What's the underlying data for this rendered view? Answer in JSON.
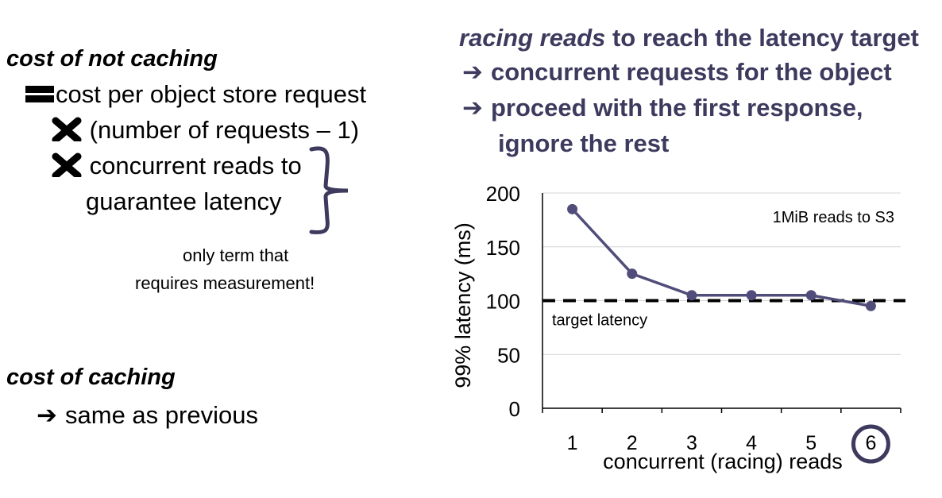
{
  "left": {
    "heading1": "cost of not caching",
    "eq_symbol": "equals-icon",
    "line1": "cost per object store request",
    "times_symbol": "times-icon",
    "line2": "(number of requests  –  1)",
    "line3a": "concurrent reads to",
    "line3b": "guarantee latency",
    "note1": "only term that",
    "note2": "requires measurement!",
    "heading2": "cost of caching",
    "line4": "same as previous"
  },
  "right": {
    "title_em": "racing reads",
    "title_rest": " to reach the latency target",
    "bullet1": "concurrent requests for the object",
    "bullet2a": "proceed with the first response,",
    "bullet2b": "ignore the rest"
  },
  "chart_data": {
    "type": "line",
    "x": [
      1,
      2,
      3,
      4,
      5,
      6
    ],
    "series": [
      {
        "name": "",
        "values": [
          185,
          125,
          105,
          105,
          105,
          95
        ],
        "color": "#504d7a"
      }
    ],
    "threshold": {
      "value": 100,
      "label": "target latency"
    },
    "annotation": "1MiB reads to S3",
    "xlabel": "concurrent (racing) reads",
    "ylabel": "99% latency (ms)",
    "ylim": [
      0,
      200
    ],
    "yticks": [
      0,
      50,
      100,
      150,
      200
    ],
    "highlight_x": 6,
    "grid": true
  }
}
